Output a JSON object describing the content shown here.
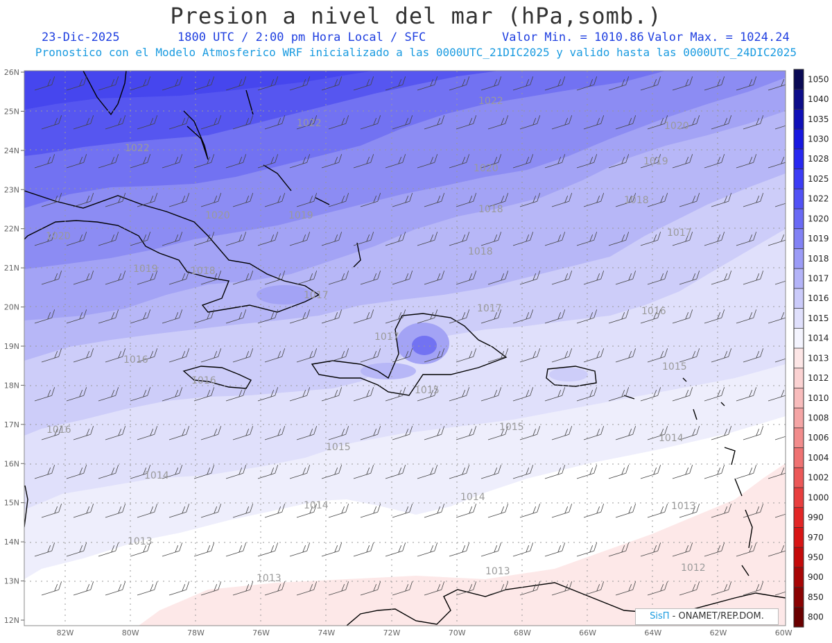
{
  "header": {
    "title": "Presion a nivel del mar (hPa,somb.)",
    "date": "23-Dic-2025",
    "time_info": "1800 UTC / 2:00 pm Hora Local / SFC",
    "min_label": "Valor Min. = 1010.86",
    "max_label": "Valor Max. = 1024.24",
    "forecast_info": "Pronostico con el Modelo Atmosferico WRF inicializado a las 0000UTC_21DIC2025 y valido hasta las  0000UTC_24DIC2025"
  },
  "map": {
    "lat_labels": [
      "26N",
      "25N",
      "24N",
      "23N",
      "22N",
      "21N",
      "20N",
      "19N",
      "18N",
      "17N",
      "16N",
      "15N",
      "14N",
      "13N",
      "12N"
    ],
    "lon_labels": [
      "82W",
      "80W",
      "78W",
      "76W",
      "74W",
      "72W",
      "70W",
      "68W",
      "66W",
      "64W",
      "62W",
      "60W"
    ],
    "contour_labels": [
      "1022",
      "1022",
      "1022",
      "1020",
      "1020",
      "1020",
      "1020",
      "1019",
      "1019",
      "1019",
      "1018",
      "1018",
      "1018",
      "1018",
      "1017",
      "1017",
      "1017",
      "1017",
      "1016",
      "1016",
      "1016",
      "1016",
      "1015",
      "1015",
      "1015",
      "1015",
      "1014",
      "1014",
      "1014",
      "1014",
      "1013",
      "1013",
      "1013",
      "1013",
      "1012"
    ]
  },
  "colorbar": {
    "labels": [
      "1050",
      "1040",
      "1035",
      "1030",
      "1028",
      "1025",
      "1022",
      "1020",
      "1019",
      "1018",
      "1017",
      "1016",
      "1015",
      "1014",
      "1013",
      "1012",
      "1010",
      "1008",
      "1006",
      "1004",
      "1002",
      "1000",
      "990",
      "970",
      "950",
      "900",
      "850",
      "800"
    ],
    "colors": [
      "#0a0a55",
      "#0d0d8a",
      "#1010b8",
      "#1818e0",
      "#2828f0",
      "#3c3cf5",
      "#5252f5",
      "#6a6af5",
      "#8282f5",
      "#9c9cf7",
      "#b4b4f8",
      "#cbcbfa",
      "#e0e0fc",
      "#f4f4fe",
      "#fde6e6",
      "#fbd2d2",
      "#f8bcbc",
      "#f5a5a5",
      "#f28c8c",
      "#ef7272",
      "#ec5858",
      "#e83e3e",
      "#e22626",
      "#d81515",
      "#c40a0a",
      "#a80505",
      "#8a0202",
      "#6a0000"
    ]
  },
  "credit": {
    "brand": "SisΠ",
    "text": " - ONAMET/REP.DOM."
  }
}
